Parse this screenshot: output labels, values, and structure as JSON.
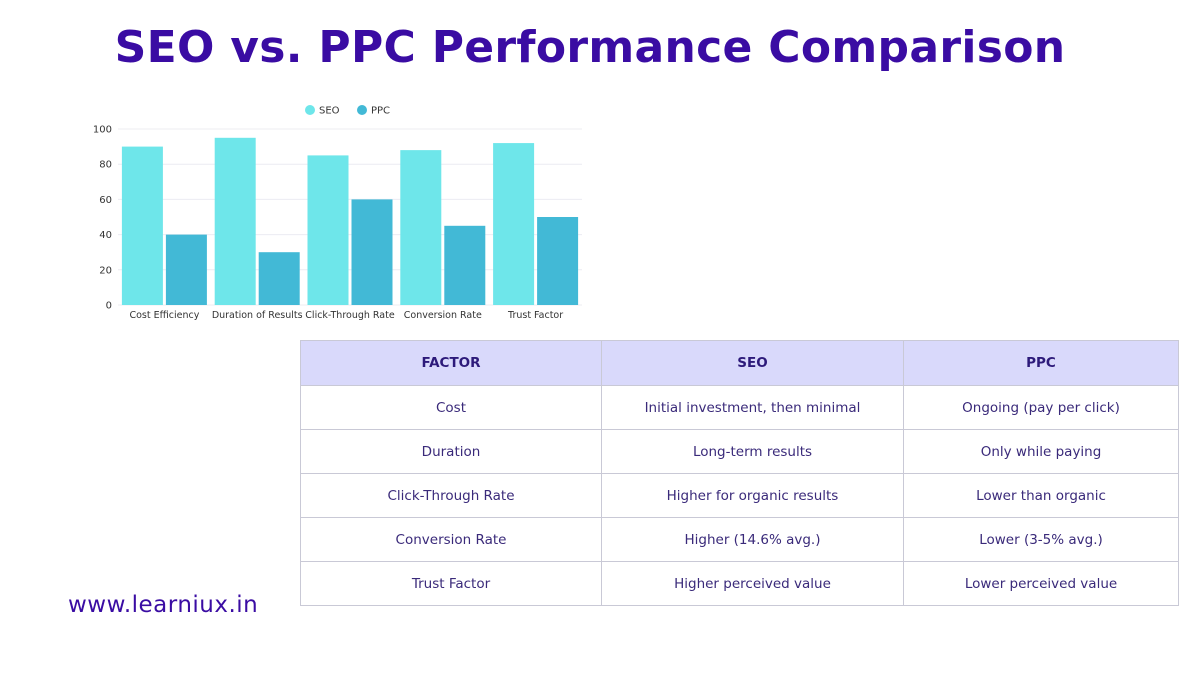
{
  "title": "SEO vs. PPC Performance Comparison",
  "colors": {
    "seo": "#6ee6ea",
    "ppc": "#42b9d6",
    "title": "#3a0ca3",
    "header_bg": "#d9d9fb"
  },
  "chart_data": {
    "type": "bar",
    "title": "",
    "xlabel": "",
    "ylabel": "",
    "categories": [
      "Cost Efficiency",
      "Duration of Results",
      "Click-Through Rate",
      "Conversion Rate",
      "Trust Factor"
    ],
    "series": [
      {
        "name": "SEO",
        "color": "#6ee6ea",
        "values": [
          90,
          95,
          85,
          88,
          92
        ]
      },
      {
        "name": "PPC",
        "color": "#42b9d6",
        "values": [
          40,
          30,
          60,
          45,
          50
        ]
      }
    ],
    "ylim": [
      0,
      100
    ],
    "yticks": [
      0,
      20,
      40,
      60,
      80,
      100
    ],
    "grid": true,
    "legend": "top-center"
  },
  "table": {
    "headers": [
      "FACTOR",
      "SEO",
      "PPC"
    ],
    "rows": [
      [
        "Cost",
        "Initial investment, then minimal",
        "Ongoing (pay per click)"
      ],
      [
        "Duration",
        "Long-term results",
        "Only while paying"
      ],
      [
        "Click-Through Rate",
        "Higher for organic results",
        "Lower than organic"
      ],
      [
        "Conversion Rate",
        "Higher (14.6% avg.)",
        "Lower (3-5% avg.)"
      ],
      [
        "Trust Factor",
        "Higher perceived value",
        "Lower perceived value"
      ]
    ]
  },
  "footer": {
    "url": "www.learniux.in"
  }
}
